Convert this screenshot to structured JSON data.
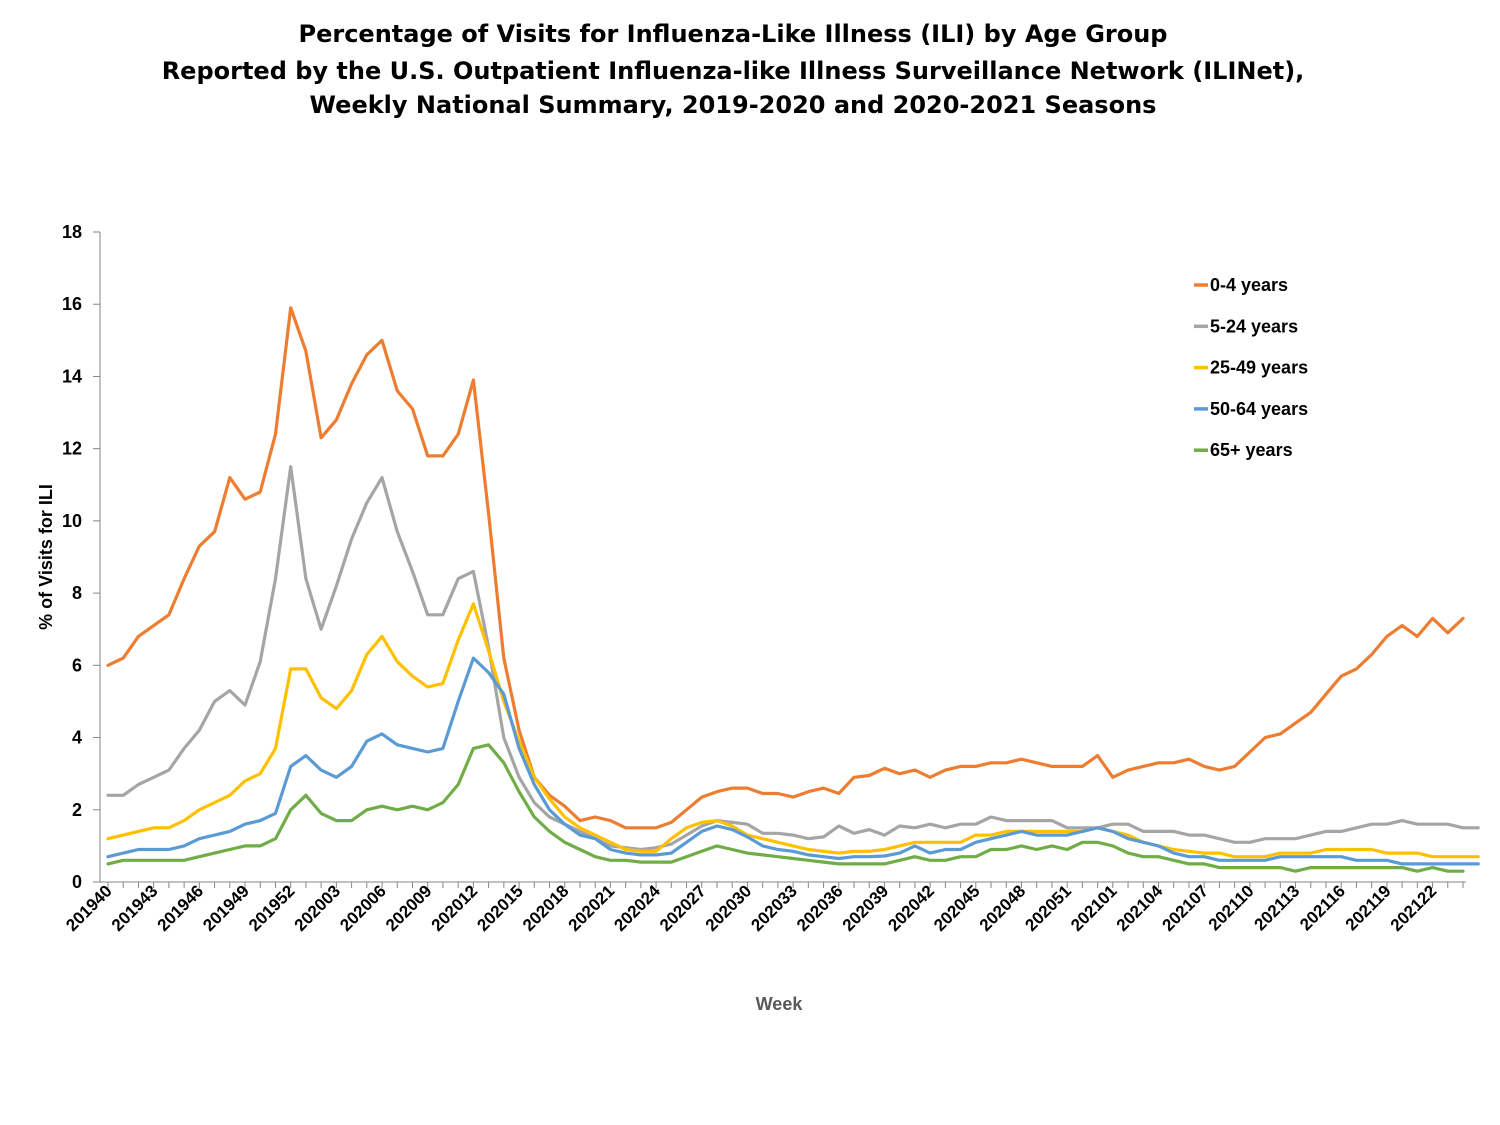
{
  "chart_data": {
    "type": "line",
    "title": [
      "Percentage of Visits for Influenza-Like Illness (ILI) by Age Group",
      "Reported by the U.S. Outpatient Influenza-like Illness Surveillance Network (ILINet),",
      "Weekly National Summary, 2019-2020 and 2020-2021 Seasons"
    ],
    "xlabel": "Week",
    "ylabel": "% of Visits for ILI",
    "ylim": [
      0,
      18
    ],
    "yticks": [
      0,
      2,
      4,
      6,
      8,
      10,
      12,
      14,
      16,
      18
    ],
    "x_tick_labels": [
      "201940",
      "201943",
      "201946",
      "201949",
      "201952",
      "202003",
      "202006",
      "202009",
      "202012",
      "202015",
      "202018",
      "202021",
      "202024",
      "202027",
      "202030",
      "202033",
      "202036",
      "202039",
      "202042",
      "202045",
      "202048",
      "202051",
      "202101",
      "202104",
      "202107",
      "202110",
      "202113",
      "202116",
      "202119",
      "202122"
    ],
    "x_tick_every": 3,
    "legend_position": "top-right",
    "grid": false,
    "series": [
      {
        "name": "0-4 years",
        "color": "#ED7D31",
        "values": [
          6.0,
          6.2,
          6.8,
          7.1,
          7.4,
          8.4,
          9.3,
          9.7,
          11.2,
          10.6,
          10.8,
          12.4,
          15.9,
          14.7,
          12.3,
          12.8,
          13.8,
          14.6,
          15.0,
          13.6,
          13.1,
          11.8,
          11.8,
          12.4,
          13.9,
          10.2,
          6.2,
          4.2,
          2.9,
          2.4,
          2.1,
          1.7,
          1.8,
          1.7,
          1.5,
          1.5,
          1.5,
          1.65,
          2.0,
          2.35,
          2.5,
          2.6,
          2.6,
          2.45,
          2.45,
          2.35,
          2.5,
          2.6,
          2.45,
          2.9,
          2.95,
          3.15,
          3.0,
          3.1,
          2.9,
          3.1,
          3.2,
          3.2,
          3.3,
          3.3,
          3.4,
          3.3,
          3.2,
          3.2,
          3.2,
          3.5,
          2.9,
          3.1,
          3.2,
          3.3,
          3.3,
          3.4,
          3.2,
          3.1,
          3.2,
          3.6,
          4.0,
          4.1,
          4.4,
          4.7,
          5.2,
          5.7,
          5.9,
          6.3,
          6.8,
          7.1,
          6.8,
          7.3,
          6.9,
          7.3
        ]
      },
      {
        "name": "5-24 years",
        "color": "#A5A5A5",
        "values": [
          2.4,
          2.4,
          2.7,
          2.9,
          3.1,
          3.7,
          4.2,
          5.0,
          5.3,
          4.9,
          6.1,
          8.4,
          11.5,
          8.4,
          7.0,
          8.2,
          9.5,
          10.5,
          11.2,
          9.7,
          8.6,
          7.4,
          7.4,
          8.4,
          8.6,
          6.5,
          4.0,
          2.9,
          2.2,
          1.8,
          1.6,
          1.4,
          1.2,
          1.0,
          0.95,
          0.9,
          0.95,
          1.05,
          1.3,
          1.55,
          1.7,
          1.65,
          1.6,
          1.35,
          1.35,
          1.3,
          1.2,
          1.25,
          1.55,
          1.35,
          1.45,
          1.3,
          1.55,
          1.5,
          1.6,
          1.5,
          1.6,
          1.6,
          1.8,
          1.7,
          1.7,
          1.7,
          1.7,
          1.5,
          1.5,
          1.5,
          1.6,
          1.6,
          1.4,
          1.4,
          1.4,
          1.3,
          1.3,
          1.2,
          1.1,
          1.1,
          1.2,
          1.2,
          1.2,
          1.3,
          1.4,
          1.4,
          1.5,
          1.6,
          1.6,
          1.7,
          1.6,
          1.6,
          1.6,
          1.5,
          1.5
        ]
      },
      {
        "name": "25-49 years",
        "color": "#FFC000",
        "values": [
          1.2,
          1.3,
          1.4,
          1.5,
          1.5,
          1.7,
          2.0,
          2.2,
          2.4,
          2.8,
          3.0,
          3.7,
          5.9,
          5.9,
          5.1,
          4.8,
          5.3,
          6.3,
          6.8,
          6.1,
          5.7,
          5.4,
          5.5,
          6.7,
          7.7,
          6.4,
          5.0,
          3.9,
          2.9,
          2.3,
          1.8,
          1.5,
          1.3,
          1.1,
          0.9,
          0.85,
          0.85,
          1.2,
          1.5,
          1.65,
          1.7,
          1.55,
          1.3,
          1.2,
          1.1,
          1.0,
          0.9,
          0.85,
          0.8,
          0.85,
          0.85,
          0.9,
          1.0,
          1.1,
          1.1,
          1.1,
          1.1,
          1.3,
          1.3,
          1.4,
          1.4,
          1.4,
          1.4,
          1.4,
          1.4,
          1.5,
          1.4,
          1.3,
          1.1,
          1.0,
          0.9,
          0.85,
          0.8,
          0.8,
          0.7,
          0.7,
          0.7,
          0.8,
          0.8,
          0.8,
          0.9,
          0.9,
          0.9,
          0.9,
          0.8,
          0.8,
          0.8,
          0.7,
          0.7,
          0.7,
          0.7
        ]
      },
      {
        "name": "50-64 years",
        "color": "#5B9BD5",
        "values": [
          0.7,
          0.8,
          0.9,
          0.9,
          0.9,
          1.0,
          1.2,
          1.3,
          1.4,
          1.6,
          1.7,
          1.9,
          3.2,
          3.5,
          3.1,
          2.9,
          3.2,
          3.9,
          4.1,
          3.8,
          3.7,
          3.6,
          3.7,
          5.0,
          6.2,
          5.8,
          5.2,
          3.7,
          2.7,
          2.0,
          1.6,
          1.3,
          1.2,
          0.9,
          0.8,
          0.75,
          0.75,
          0.8,
          1.1,
          1.4,
          1.55,
          1.45,
          1.25,
          1.0,
          0.9,
          0.85,
          0.75,
          0.7,
          0.65,
          0.7,
          0.7,
          0.72,
          0.8,
          1.0,
          0.8,
          0.9,
          0.9,
          1.1,
          1.2,
          1.3,
          1.4,
          1.3,
          1.3,
          1.3,
          1.4,
          1.5,
          1.4,
          1.2,
          1.1,
          1.0,
          0.8,
          0.7,
          0.7,
          0.6,
          0.6,
          0.6,
          0.6,
          0.7,
          0.7,
          0.7,
          0.7,
          0.7,
          0.6,
          0.6,
          0.6,
          0.5,
          0.5,
          0.5,
          0.5,
          0.5,
          0.5
        ]
      },
      {
        "name": "65+ years",
        "color": "#70AD47",
        "values": [
          0.5,
          0.6,
          0.6,
          0.6,
          0.6,
          0.6,
          0.7,
          0.8,
          0.9,
          1.0,
          1.0,
          1.2,
          2.0,
          2.4,
          1.9,
          1.7,
          1.7,
          2.0,
          2.1,
          2.0,
          2.1,
          2.0,
          2.2,
          2.7,
          3.7,
          3.8,
          3.3,
          2.5,
          1.8,
          1.4,
          1.1,
          0.9,
          0.7,
          0.6,
          0.6,
          0.55,
          0.55,
          0.55,
          0.7,
          0.85,
          1.0,
          0.9,
          0.8,
          0.75,
          0.7,
          0.65,
          0.6,
          0.55,
          0.5,
          0.5,
          0.5,
          0.5,
          0.6,
          0.7,
          0.6,
          0.6,
          0.7,
          0.7,
          0.9,
          0.9,
          1.0,
          0.9,
          1.0,
          0.9,
          1.1,
          1.1,
          1.0,
          0.8,
          0.7,
          0.7,
          0.6,
          0.5,
          0.5,
          0.4,
          0.4,
          0.4,
          0.4,
          0.4,
          0.3,
          0.4,
          0.4,
          0.4,
          0.4,
          0.4,
          0.4,
          0.4,
          0.3,
          0.4,
          0.3,
          0.3
        ]
      }
    ]
  }
}
